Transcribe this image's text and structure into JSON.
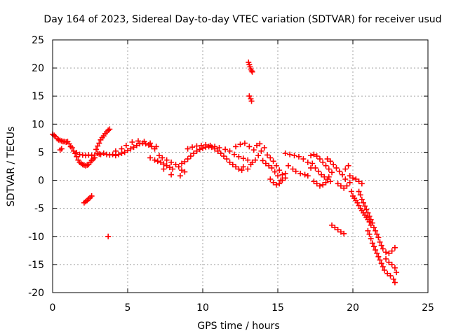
{
  "chart_data": {
    "type": "scatter",
    "title": "Day 164 of 2023, Sidereal Day-to-day VTEC variation (SDTVAR) for receiver usud",
    "xlabel": "GPS time / hours",
    "ylabel": "SDTVAR / TECUs",
    "xlim": [
      0,
      25
    ],
    "ylim": [
      -20,
      25
    ],
    "xticks": [
      0,
      5,
      10,
      15,
      20,
      25
    ],
    "yticks": [
      -20,
      -15,
      -10,
      -5,
      0,
      5,
      10,
      15,
      20,
      25
    ],
    "grid": true,
    "marker": "plus",
    "color": "#ff0000",
    "series": [
      {
        "name": "SDTVAR",
        "points": [
          [
            0.0,
            8.2
          ],
          [
            0.1,
            8.0
          ],
          [
            0.2,
            7.8
          ],
          [
            0.3,
            7.4
          ],
          [
            0.4,
            7.2
          ],
          [
            0.5,
            7.1
          ],
          [
            0.6,
            7.0
          ],
          [
            0.7,
            6.9
          ],
          [
            0.8,
            6.9
          ],
          [
            0.9,
            6.8
          ],
          [
            1.0,
            6.9
          ],
          [
            1.1,
            6.5
          ],
          [
            1.2,
            6.0
          ],
          [
            1.3,
            5.8
          ],
          [
            0.5,
            5.4
          ],
          [
            0.6,
            5.6
          ],
          [
            1.4,
            5.2
          ],
          [
            1.5,
            4.8
          ],
          [
            1.6,
            4.2
          ],
          [
            1.7,
            3.6
          ],
          [
            1.8,
            3.2
          ],
          [
            1.9,
            3.0
          ],
          [
            2.0,
            2.8
          ],
          [
            2.1,
            2.7
          ],
          [
            2.2,
            2.6
          ],
          [
            2.3,
            2.7
          ],
          [
            2.4,
            2.8
          ],
          [
            2.5,
            3.2
          ],
          [
            2.6,
            3.5
          ],
          [
            2.7,
            3.8
          ],
          [
            2.8,
            4.0
          ],
          [
            1.6,
            4.9
          ],
          [
            1.8,
            4.6
          ],
          [
            2.0,
            4.5
          ],
          [
            2.2,
            4.4
          ],
          [
            2.4,
            4.5
          ],
          [
            2.6,
            4.4
          ],
          [
            2.8,
            4.5
          ],
          [
            2.9,
            5.5
          ],
          [
            3.0,
            6.1
          ],
          [
            3.1,
            6.6
          ],
          [
            3.2,
            7.2
          ],
          [
            3.3,
            7.6
          ],
          [
            3.4,
            7.9
          ],
          [
            3.5,
            8.3
          ],
          [
            3.6,
            8.6
          ],
          [
            3.7,
            8.9
          ],
          [
            3.8,
            9.1
          ],
          [
            3.0,
            4.8
          ],
          [
            3.1,
            4.7
          ],
          [
            3.2,
            4.6
          ],
          [
            3.4,
            4.8
          ],
          [
            3.6,
            4.6
          ],
          [
            3.8,
            4.5
          ],
          [
            4.0,
            4.6
          ],
          [
            4.2,
            4.4
          ],
          [
            4.4,
            4.6
          ],
          [
            4.6,
            4.8
          ],
          [
            4.8,
            5.0
          ],
          [
            5.0,
            5.3
          ],
          [
            5.2,
            5.6
          ],
          [
            5.4,
            5.9
          ],
          [
            5.6,
            6.2
          ],
          [
            5.8,
            6.5
          ],
          [
            6.0,
            6.6
          ],
          [
            6.2,
            6.5
          ],
          [
            6.4,
            6.3
          ],
          [
            6.6,
            6.0
          ],
          [
            6.8,
            5.6
          ],
          [
            4.2,
            5.2
          ],
          [
            4.6,
            5.6
          ],
          [
            4.9,
            6.2
          ],
          [
            5.3,
            6.8
          ],
          [
            5.7,
            7.0
          ],
          [
            6.1,
            6.9
          ],
          [
            6.5,
            6.6
          ],
          [
            6.9,
            6.0
          ],
          [
            6.5,
            4.0
          ],
          [
            6.8,
            3.6
          ],
          [
            7.0,
            3.4
          ],
          [
            7.2,
            3.2
          ],
          [
            7.4,
            2.9
          ],
          [
            7.6,
            2.6
          ],
          [
            7.8,
            2.3
          ],
          [
            8.0,
            2.0
          ],
          [
            7.1,
            4.4
          ],
          [
            7.3,
            4.0
          ],
          [
            7.6,
            3.6
          ],
          [
            7.9,
            3.2
          ],
          [
            8.2,
            2.8
          ],
          [
            8.4,
            2.4
          ],
          [
            8.6,
            1.8
          ],
          [
            8.8,
            1.5
          ],
          [
            7.9,
            1.0
          ],
          [
            8.5,
            0.8
          ],
          [
            7.4,
            2.0
          ],
          [
            8.6,
            3.0
          ],
          [
            8.8,
            3.3
          ],
          [
            9.0,
            3.8
          ],
          [
            9.2,
            4.3
          ],
          [
            9.4,
            4.8
          ],
          [
            9.6,
            5.2
          ],
          [
            9.8,
            5.5
          ],
          [
            10.0,
            5.7
          ],
          [
            10.2,
            5.9
          ],
          [
            10.4,
            6.0
          ],
          [
            10.6,
            5.9
          ],
          [
            10.8,
            5.6
          ],
          [
            11.0,
            5.2
          ],
          [
            9.0,
            5.6
          ],
          [
            9.3,
            5.9
          ],
          [
            9.6,
            6.1
          ],
          [
            9.9,
            6.2
          ],
          [
            10.2,
            6.3
          ],
          [
            10.5,
            6.2
          ],
          [
            10.8,
            6.0
          ],
          [
            11.1,
            5.8
          ],
          [
            11.2,
            4.8
          ],
          [
            11.4,
            4.3
          ],
          [
            11.6,
            3.8
          ],
          [
            11.8,
            3.2
          ],
          [
            12.0,
            2.8
          ],
          [
            12.2,
            2.4
          ],
          [
            12.4,
            2.0
          ],
          [
            12.6,
            1.8
          ],
          [
            11.5,
            5.5
          ],
          [
            11.8,
            5.2
          ],
          [
            12.1,
            4.6
          ],
          [
            12.4,
            4.2
          ],
          [
            12.7,
            3.9
          ],
          [
            13.0,
            3.6
          ],
          [
            13.3,
            3.2
          ],
          [
            12.2,
            6.0
          ],
          [
            12.5,
            6.4
          ],
          [
            12.8,
            6.6
          ],
          [
            13.1,
            6.0
          ],
          [
            13.4,
            5.4
          ],
          [
            13.6,
            6.2
          ],
          [
            13.8,
            6.5
          ],
          [
            12.7,
            2.4
          ],
          [
            13.0,
            2.0
          ],
          [
            13.2,
            2.8
          ],
          [
            13.5,
            3.6
          ],
          [
            13.7,
            4.4
          ],
          [
            13.9,
            5.2
          ],
          [
            14.1,
            5.8
          ],
          [
            13.05,
            21.0
          ],
          [
            13.1,
            20.6
          ],
          [
            13.15,
            20.2
          ],
          [
            13.2,
            19.8
          ],
          [
            13.25,
            19.5
          ],
          [
            13.3,
            19.3
          ],
          [
            13.1,
            15.0
          ],
          [
            13.2,
            14.5
          ],
          [
            13.25,
            14.1
          ],
          [
            14.0,
            3.5
          ],
          [
            14.2,
            3.0
          ],
          [
            14.4,
            2.6
          ],
          [
            14.6,
            2.2
          ],
          [
            14.8,
            1.5
          ],
          [
            15.0,
            0.8
          ],
          [
            15.2,
            0.0
          ],
          [
            14.3,
            4.5
          ],
          [
            14.5,
            4.0
          ],
          [
            14.7,
            3.4
          ],
          [
            14.9,
            2.6
          ],
          [
            15.1,
            1.8
          ],
          [
            15.3,
            1.0
          ],
          [
            15.5,
            0.4
          ],
          [
            14.5,
            0.2
          ],
          [
            14.7,
            -0.4
          ],
          [
            14.9,
            -0.8
          ],
          [
            15.1,
            -0.6
          ],
          [
            15.3,
            0.0
          ],
          [
            15.5,
            1.2
          ],
          [
            15.7,
            2.6
          ],
          [
            15.5,
            4.8
          ],
          [
            15.8,
            4.6
          ],
          [
            16.1,
            4.4
          ],
          [
            16.4,
            4.2
          ],
          [
            16.7,
            3.8
          ],
          [
            17.0,
            3.2
          ],
          [
            16.0,
            2.0
          ],
          [
            16.2,
            1.6
          ],
          [
            16.5,
            1.2
          ],
          [
            16.8,
            1.0
          ],
          [
            17.0,
            0.8
          ],
          [
            17.2,
            2.2
          ],
          [
            17.2,
            4.4
          ],
          [
            17.4,
            4.6
          ],
          [
            17.6,
            4.3
          ],
          [
            17.8,
            3.8
          ],
          [
            18.0,
            3.2
          ],
          [
            18.2,
            2.6
          ],
          [
            18.4,
            2.0
          ],
          [
            17.3,
            3.0
          ],
          [
            17.5,
            2.2
          ],
          [
            17.7,
            1.6
          ],
          [
            17.9,
            1.0
          ],
          [
            18.1,
            0.6
          ],
          [
            18.3,
            0.2
          ],
          [
            18.5,
            -0.2
          ],
          [
            17.4,
            -0.2
          ],
          [
            17.6,
            -0.6
          ],
          [
            17.8,
            -1.0
          ],
          [
            18.0,
            -0.8
          ],
          [
            18.2,
            -0.4
          ],
          [
            18.4,
            0.6
          ],
          [
            18.6,
            1.4
          ],
          [
            18.3,
            3.8
          ],
          [
            18.5,
            3.4
          ],
          [
            18.7,
            2.8
          ],
          [
            18.9,
            2.2
          ],
          [
            19.1,
            1.6
          ],
          [
            19.3,
            1.0
          ],
          [
            19.5,
            0.2
          ],
          [
            19.0,
            -0.6
          ],
          [
            19.2,
            -1.0
          ],
          [
            19.4,
            -1.4
          ],
          [
            19.6,
            -1.0
          ],
          [
            19.8,
            -0.4
          ],
          [
            19.5,
            2.0
          ],
          [
            19.7,
            2.6
          ],
          [
            18.6,
            -8.0
          ],
          [
            18.8,
            -8.4
          ],
          [
            19.0,
            -8.8
          ],
          [
            19.2,
            -9.2
          ],
          [
            19.4,
            -9.5
          ],
          [
            19.8,
            0.8
          ],
          [
            20.0,
            0.4
          ],
          [
            20.2,
            0.2
          ],
          [
            20.4,
            -0.2
          ],
          [
            20.6,
            -0.6
          ],
          [
            19.9,
            -2.0
          ],
          [
            20.0,
            -2.8
          ],
          [
            20.1,
            -3.2
          ],
          [
            20.2,
            -3.6
          ],
          [
            20.3,
            -4.0
          ],
          [
            20.4,
            -4.5
          ],
          [
            20.5,
            -5.0
          ],
          [
            20.6,
            -5.4
          ],
          [
            20.7,
            -5.8
          ],
          [
            20.8,
            -6.2
          ],
          [
            20.9,
            -6.6
          ],
          [
            21.0,
            -7.0
          ],
          [
            21.1,
            -7.4
          ],
          [
            21.2,
            -8.0
          ],
          [
            20.4,
            -2.0
          ],
          [
            20.5,
            -2.6
          ],
          [
            20.6,
            -3.4
          ],
          [
            20.7,
            -4.0
          ],
          [
            20.8,
            -4.6
          ],
          [
            20.9,
            -5.2
          ],
          [
            21.0,
            -5.8
          ],
          [
            21.1,
            -6.4
          ],
          [
            21.2,
            -7.0
          ],
          [
            21.3,
            -7.6
          ],
          [
            21.4,
            -8.4
          ],
          [
            21.5,
            -9.0
          ],
          [
            21.6,
            -9.6
          ],
          [
            21.7,
            -10.2
          ],
          [
            21.0,
            -9.0
          ],
          [
            21.1,
            -9.6
          ],
          [
            21.2,
            -10.4
          ],
          [
            21.3,
            -11.2
          ],
          [
            21.4,
            -11.8
          ],
          [
            21.5,
            -12.4
          ],
          [
            21.6,
            -13.0
          ],
          [
            21.7,
            -13.6
          ],
          [
            21.8,
            -14.2
          ],
          [
            21.9,
            -14.8
          ],
          [
            22.0,
            -15.4
          ],
          [
            22.1,
            -16.0
          ],
          [
            21.8,
            -11.0
          ],
          [
            21.9,
            -11.6
          ],
          [
            22.0,
            -12.2
          ],
          [
            22.2,
            -12.8
          ],
          [
            22.4,
            -13.0
          ],
          [
            22.6,
            -12.6
          ],
          [
            22.8,
            -12.0
          ],
          [
            22.2,
            -14.0
          ],
          [
            22.4,
            -14.6
          ],
          [
            22.6,
            -15.0
          ],
          [
            22.8,
            -15.6
          ],
          [
            22.9,
            -16.4
          ],
          [
            22.3,
            -16.6
          ],
          [
            22.5,
            -17.0
          ],
          [
            22.7,
            -17.6
          ],
          [
            22.8,
            -18.2
          ],
          [
            2.2,
            -3.8
          ],
          [
            2.3,
            -3.6
          ],
          [
            2.4,
            -3.3
          ],
          [
            2.5,
            -3.1
          ],
          [
            2.6,
            -2.8
          ],
          [
            2.1,
            -4.0
          ],
          [
            3.7,
            -10.0
          ]
        ]
      }
    ]
  }
}
